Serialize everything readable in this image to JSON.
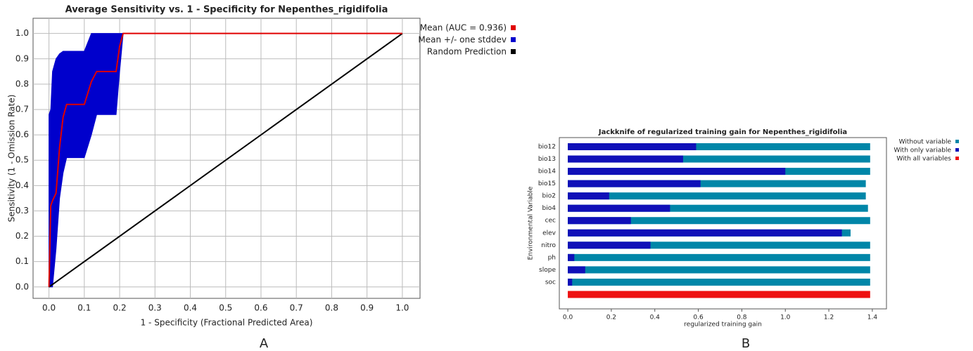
{
  "chart_data": [
    {
      "type": "line",
      "label": "A",
      "title": "Average Sensitivity vs. 1 - Specificity for Nepenthes_rigidifolia",
      "xlabel": "1 - Specificity (Fractional Predicted Area)",
      "ylabel": "Sensitivity (1 - Omission Rate)",
      "xlim": [
        -0.045,
        1.05
      ],
      "ylim": [
        -0.045,
        1.06
      ],
      "xticks": [
        {
          "value": 0,
          "label": "0.0"
        },
        0.1,
        0.2,
        0.3,
        0.4,
        0.5,
        0.6,
        0.7,
        0.8,
        0.9,
        {
          "value": 1,
          "label": "1.0"
        }
      ],
      "yticks": [
        {
          "value": 0,
          "label": "0.0"
        },
        0.1,
        0.2,
        0.3,
        0.4,
        0.5,
        0.6,
        0.7,
        0.8,
        0.9,
        {
          "value": 1,
          "label": "1.0"
        }
      ],
      "grid": true,
      "series": [
        {
          "name": "Mean (AUC = 0.936)",
          "color": "#e00000",
          "x": [
            0,
            0.005,
            0.01,
            0.02,
            0.03,
            0.04,
            0.05,
            0.1,
            0.12,
            0.135,
            0.19,
            0.2,
            0.21,
            1
          ],
          "values": [
            0,
            0.32,
            0.34,
            0.37,
            0.55,
            0.67,
            0.72,
            0.72,
            0.81,
            0.85,
            0.85,
            0.95,
            1,
            1
          ]
        },
        {
          "name": "Mean +/- one stddev",
          "color": "#0000cc",
          "x": [
            0,
            0.005,
            0.01,
            0.02,
            0.03,
            0.04,
            0.05,
            0.1,
            0.12,
            0.135,
            0.19,
            0.2,
            0.21,
            1
          ],
          "values": [
            0.68,
            0.7,
            0.85,
            0.9,
            0.92,
            0.93,
            0.93,
            0.93,
            1,
            1,
            1,
            1,
            1,
            1
          ],
          "lower": [
            0,
            0,
            0,
            0.15,
            0.35,
            0.45,
            0.51,
            0.51,
            0.6,
            0.68,
            0.68,
            0.85,
            1,
            1
          ]
        },
        {
          "name": "Random Prediction",
          "color": "#000000",
          "x": [
            0,
            1
          ],
          "values": [
            0,
            1
          ]
        }
      ]
    },
    {
      "type": "hbar",
      "label": "B",
      "title": "Jackknife of regularized training gain for Nepenthes_rigidifolia",
      "xlabel": "regularized training gain",
      "ylabel": "Environmental Variable",
      "xlim": [
        -0.039,
        1.465
      ],
      "xticks": [
        {
          "value": 0,
          "label": "0.0"
        },
        0.2,
        0.4,
        0.6,
        0.8,
        {
          "value": 1,
          "label": "1.0"
        },
        1.2,
        1.4
      ],
      "categories": [
        "bio12",
        "bio13",
        "bio14",
        "bio15",
        "bio2",
        "bio4",
        "cec",
        "elev",
        "nitro",
        "ph",
        "slope",
        "soc",
        null
      ],
      "series": [
        {
          "name": "Without variable",
          "color": "#0086a8",
          "values": [
            1.39,
            1.39,
            1.39,
            1.37,
            1.37,
            1.38,
            1.39,
            1.3,
            1.39,
            1.39,
            1.39,
            1.39,
            null
          ]
        },
        {
          "name": "With only variable",
          "color": "#1010b8",
          "values": [
            0.59,
            0.53,
            1.0,
            0.61,
            0.19,
            0.47,
            0.29,
            1.26,
            0.38,
            0.03,
            0.08,
            0.02,
            null
          ]
        },
        {
          "name": "With all variables",
          "color": "#ee1111",
          "values": [
            null,
            null,
            null,
            null,
            null,
            null,
            null,
            null,
            null,
            null,
            null,
            null,
            1.39
          ]
        }
      ]
    }
  ]
}
